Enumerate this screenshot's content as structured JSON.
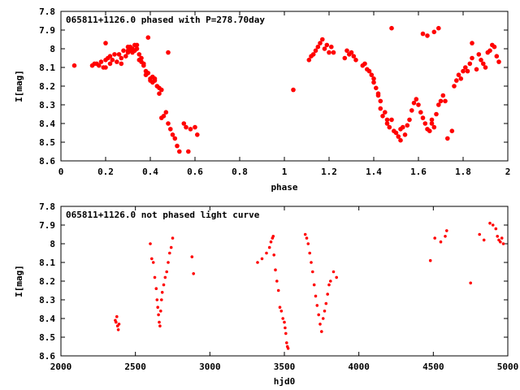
{
  "chart_data": [
    {
      "type": "scatter",
      "title": "065811+1126.0 phased with P=278.70day",
      "xlabel": "phase",
      "ylabel": "I[mag]",
      "xlim": [
        0,
        2
      ],
      "ylim": [
        8.6,
        7.8
      ],
      "x_ticks": [
        "0",
        "0.2",
        "0.4",
        "0.6",
        "0.8",
        "1",
        "1.2",
        "1.4",
        "1.6",
        "1.8",
        "2"
      ],
      "y_ticks": [
        "7.8",
        "7.9",
        "8",
        "8.1",
        "8.2",
        "8.3",
        "8.4",
        "8.5",
        "8.6"
      ],
      "color": "#ff0000",
      "x": [
        0.06,
        0.14,
        0.15,
        0.16,
        0.17,
        0.18,
        0.19,
        0.2,
        0.2,
        0.21,
        0.22,
        0.22,
        0.23,
        0.24,
        0.25,
        0.26,
        0.27,
        0.27,
        0.28,
        0.29,
        0.3,
        0.3,
        0.31,
        0.31,
        0.32,
        0.32,
        0.33,
        0.33,
        0.34,
        0.34,
        0.35,
        0.35,
        0.36,
        0.36,
        0.37,
        0.37,
        0.38,
        0.38,
        0.39,
        0.4,
        0.4,
        0.41,
        0.41,
        0.42,
        0.42,
        0.43,
        0.44,
        0.44,
        0.45,
        0.45,
        0.46,
        0.47,
        0.48,
        0.49,
        0.5,
        0.51,
        0.52,
        0.53,
        0.55,
        0.56,
        0.57,
        0.58,
        0.6,
        0.61,
        0.2,
        0.39,
        0.48,
        0.3,
        1.04,
        1.11,
        1.12,
        1.13,
        1.14,
        1.15,
        1.16,
        1.17,
        1.18,
        1.19,
        1.2,
        1.21,
        1.22,
        1.27,
        1.28,
        1.29,
        1.3,
        1.31,
        1.32,
        1.35,
        1.36,
        1.37,
        1.38,
        1.39,
        1.4,
        1.4,
        1.41,
        1.42,
        1.42,
        1.43,
        1.43,
        1.44,
        1.45,
        1.46,
        1.46,
        1.47,
        1.48,
        1.49,
        1.5,
        1.51,
        1.52,
        1.52,
        1.53,
        1.54,
        1.55,
        1.56,
        1.57,
        1.58,
        1.59,
        1.6,
        1.61,
        1.62,
        1.63,
        1.64,
        1.65,
        1.66,
        1.66,
        1.67,
        1.68,
        1.69,
        1.7,
        1.71,
        1.72,
        1.73,
        1.75,
        1.76,
        1.77,
        1.78,
        1.79,
        1.8,
        1.81,
        1.82,
        1.83,
        1.84,
        1.86,
        1.87,
        1.88,
        1.89,
        1.9,
        1.91,
        1.92,
        1.93,
        1.94,
        1.95,
        1.48,
        1.62,
        1.64,
        1.67,
        1.69,
        1.84,
        1.96
      ],
      "y": [
        8.09,
        8.09,
        8.08,
        8.08,
        8.09,
        8.07,
        8.1,
        8.06,
        8.1,
        8.05,
        8.08,
        8.04,
        8.06,
        8.03,
        8.07,
        8.03,
        8.05,
        8.08,
        8.01,
        8.04,
        7.99,
        8.02,
        8.01,
        7.99,
        8.0,
        8.02,
        7.98,
        8.01,
        7.98,
        8.0,
        8.03,
        8.06,
        8.07,
        8.05,
        8.08,
        8.09,
        8.12,
        8.14,
        8.13,
        8.16,
        8.17,
        8.15,
        8.18,
        8.16,
        8.17,
        8.2,
        8.21,
        8.24,
        8.22,
        8.37,
        8.36,
        8.34,
        8.4,
        8.43,
        8.46,
        8.48,
        8.52,
        8.55,
        8.4,
        8.42,
        8.55,
        8.43,
        8.42,
        8.46,
        7.97,
        7.94,
        8.02,
        8.01,
        8.22,
        8.06,
        8.04,
        8.03,
        8.01,
        7.99,
        7.97,
        7.95,
        8.0,
        7.98,
        8.02,
        7.99,
        8.02,
        8.05,
        8.01,
        8.03,
        8.02,
        8.04,
        8.06,
        8.09,
        8.08,
        8.11,
        8.12,
        8.14,
        8.16,
        8.18,
        8.21,
        8.24,
        8.25,
        8.28,
        8.32,
        8.36,
        8.34,
        8.38,
        8.4,
        8.42,
        8.38,
        8.44,
        8.45,
        8.47,
        8.49,
        8.43,
        8.42,
        8.46,
        8.41,
        8.38,
        8.33,
        8.29,
        8.27,
        8.3,
        8.34,
        8.37,
        8.4,
        8.43,
        8.44,
        8.4,
        8.38,
        8.42,
        8.35,
        8.3,
        8.28,
        8.25,
        8.28,
        8.48,
        8.44,
        8.2,
        8.17,
        8.14,
        8.16,
        8.12,
        8.1,
        8.12,
        8.08,
        8.05,
        8.11,
        8.03,
        8.06,
        8.08,
        8.1,
        8.02,
        8.01,
        7.98,
        7.99,
        8.04,
        7.89,
        7.92,
        7.93,
        7.91,
        7.89,
        7.97,
        8.07
      ]
    },
    {
      "type": "scatter",
      "title": "065811+1126.0 not phased light curve",
      "xlabel": "hjd0",
      "ylabel": "I[mag]",
      "xlim": [
        2000,
        5000
      ],
      "ylim": [
        8.6,
        7.8
      ],
      "x_ticks": [
        "2000",
        "2500",
        "3000",
        "3500",
        "4000",
        "4500",
        "5000"
      ],
      "y_ticks": [
        "7.8",
        "7.9",
        "8",
        "8.1",
        "8.2",
        "8.3",
        "8.4",
        "8.5",
        "8.6"
      ],
      "color": "#ff0000",
      "x": [
        2365,
        2370,
        2375,
        2380,
        2385,
        2390,
        2600,
        2610,
        2620,
        2630,
        2640,
        2645,
        2650,
        2655,
        2660,
        2665,
        2670,
        2675,
        2680,
        2690,
        2700,
        2710,
        2720,
        2730,
        2740,
        2750,
        2880,
        2890,
        3320,
        3350,
        3380,
        3400,
        3410,
        3420,
        3425,
        3430,
        3440,
        3450,
        3460,
        3470,
        3480,
        3490,
        3500,
        3505,
        3510,
        3515,
        3520,
        3525,
        3640,
        3650,
        3660,
        3670,
        3680,
        3690,
        3700,
        3710,
        3720,
        3730,
        3740,
        3750,
        3760,
        3770,
        3780,
        3790,
        3800,
        3810,
        3830,
        3850,
        4480,
        4510,
        4550,
        4580,
        4590,
        4750,
        4810,
        4840,
        4880,
        4900,
        4920,
        4930,
        4940,
        4950,
        4960,
        4970
      ],
      "y": [
        8.41,
        8.42,
        8.39,
        8.44,
        8.46,
        8.43,
        8.0,
        8.08,
        8.1,
        8.18,
        8.24,
        8.3,
        8.34,
        8.38,
        8.42,
        8.44,
        8.36,
        8.3,
        8.26,
        8.22,
        8.18,
        8.15,
        8.1,
        8.05,
        8.02,
        7.97,
        8.07,
        8.16,
        8.1,
        8.08,
        8.05,
        8.02,
        7.99,
        7.97,
        7.96,
        8.06,
        8.14,
        8.2,
        8.25,
        8.34,
        8.36,
        8.4,
        8.42,
        8.45,
        8.48,
        8.53,
        8.55,
        8.56,
        7.95,
        7.97,
        8.0,
        8.05,
        8.1,
        8.15,
        8.22,
        8.28,
        8.33,
        8.38,
        8.43,
        8.47,
        8.4,
        8.36,
        8.32,
        8.27,
        8.22,
        8.2,
        8.15,
        8.18,
        8.09,
        7.97,
        7.99,
        7.96,
        7.93,
        8.21,
        7.95,
        7.98,
        7.89,
        7.9,
        7.92,
        7.96,
        7.98,
        7.99,
        7.97,
        8.0
      ]
    }
  ]
}
